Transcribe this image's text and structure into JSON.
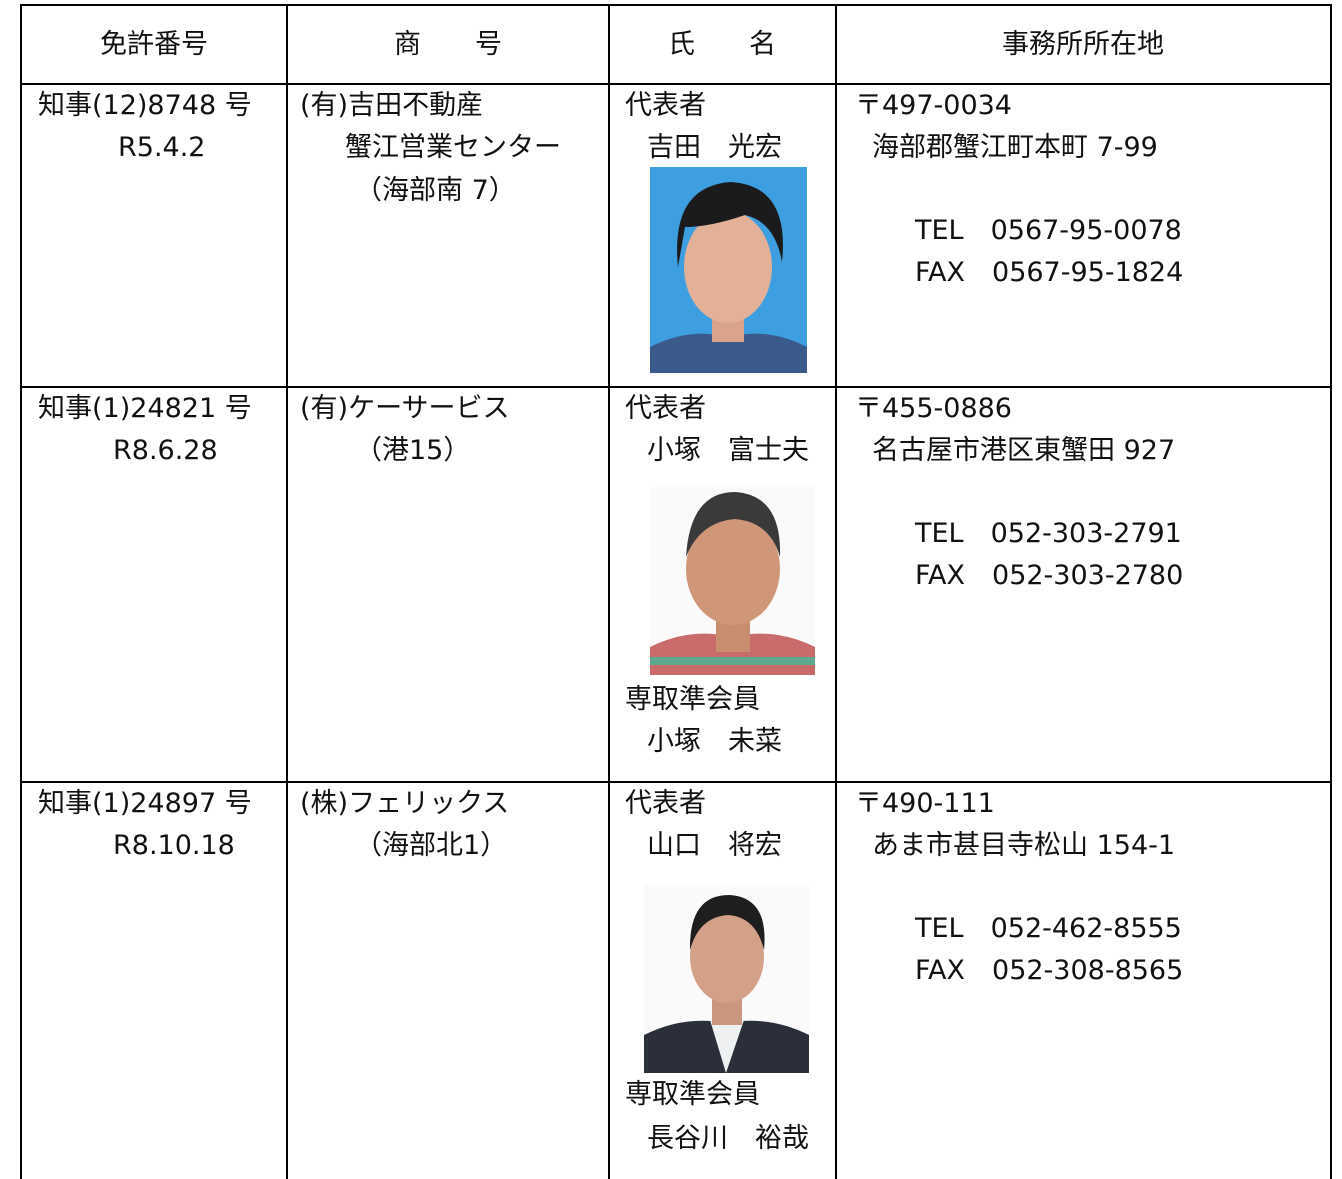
{
  "table": {
    "headers": [
      "免許番号",
      "商　　号",
      "氏　　名",
      "事務所所在地"
    ],
    "rows": [
      [
        [
          "知事(12)8748 号",
          "R5.4.2"
        ],
        [
          "(有)吉田不動産",
          "蟹江営業センター",
          "（海部南 7）"
        ],
        [
          "代表者",
          "吉田　光宏"
        ],
        [
          "〒497-0034",
          "海部郡蟹江町本町 7-99",
          "TEL　0567-95-0078",
          "FAX　0567-95-1824"
        ]
      ],
      [
        [
          "知事(1)24821 号",
          "R8.6.28"
        ],
        [
          "(有)ケーサービス",
          "（港15）"
        ],
        [
          "代表者",
          "小塚　富士夫",
          "専取準会員",
          "小塚　未菜"
        ],
        [
          "〒455-0886",
          "名古屋市港区東蟹田 927",
          "TEL　052-303-2791",
          "FAX　052-303-2780"
        ]
      ],
      [
        [
          "知事(1)24897 号",
          "R8.10.18"
        ],
        [
          "(株)フェリックス",
          "（海部北1）"
        ],
        [
          "代表者",
          "山口　将宏",
          "専取準会員",
          "長谷川　裕哉"
        ],
        [
          "〒490-111",
          "あま市甚目寺松山 154-1",
          "TEL　052-462-8555",
          "FAX　052-308-8565"
        ]
      ]
    ]
  }
}
